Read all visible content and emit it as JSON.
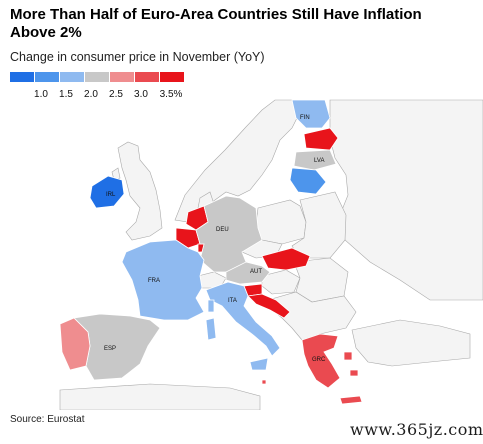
{
  "header": {
    "title": "More Than Half of Euro-Area Countries Still Have Inflation Above 2%",
    "subtitle": "Change in consumer price in November (YoY)"
  },
  "legend": {
    "ticks": [
      "1.0",
      "1.5",
      "2.0",
      "2.5",
      "3.0",
      "3.5%"
    ],
    "colors": [
      "#1f6fe5",
      "#4d95ec",
      "#8fbaf0",
      "#c8c8c8",
      "#ef8d8f",
      "#ea4a50",
      "#e8141b"
    ]
  },
  "map_colors": {
    "non_euro": "#f4f4f4",
    "border": "#a9a9a9"
  },
  "countries": [
    {
      "code": "FIN",
      "color": "#8fbaf0"
    },
    {
      "code": "LVA",
      "color": "#c8c8c8"
    },
    {
      "code": "IRL",
      "color": "#1f6fe5"
    },
    {
      "code": "DEU",
      "color": "#c8c8c8"
    },
    {
      "code": "FRA",
      "color": "#8fbaf0"
    },
    {
      "code": "AUT",
      "color": "#c8c8c8"
    },
    {
      "code": "ITA",
      "color": "#8fbaf0"
    },
    {
      "code": "ESP",
      "color": "#c8c8c8"
    },
    {
      "code": "GRC",
      "color": "#ea4a50"
    }
  ],
  "footer": {
    "source": "Source: Eurostat",
    "watermark": "www.365jz.com"
  }
}
